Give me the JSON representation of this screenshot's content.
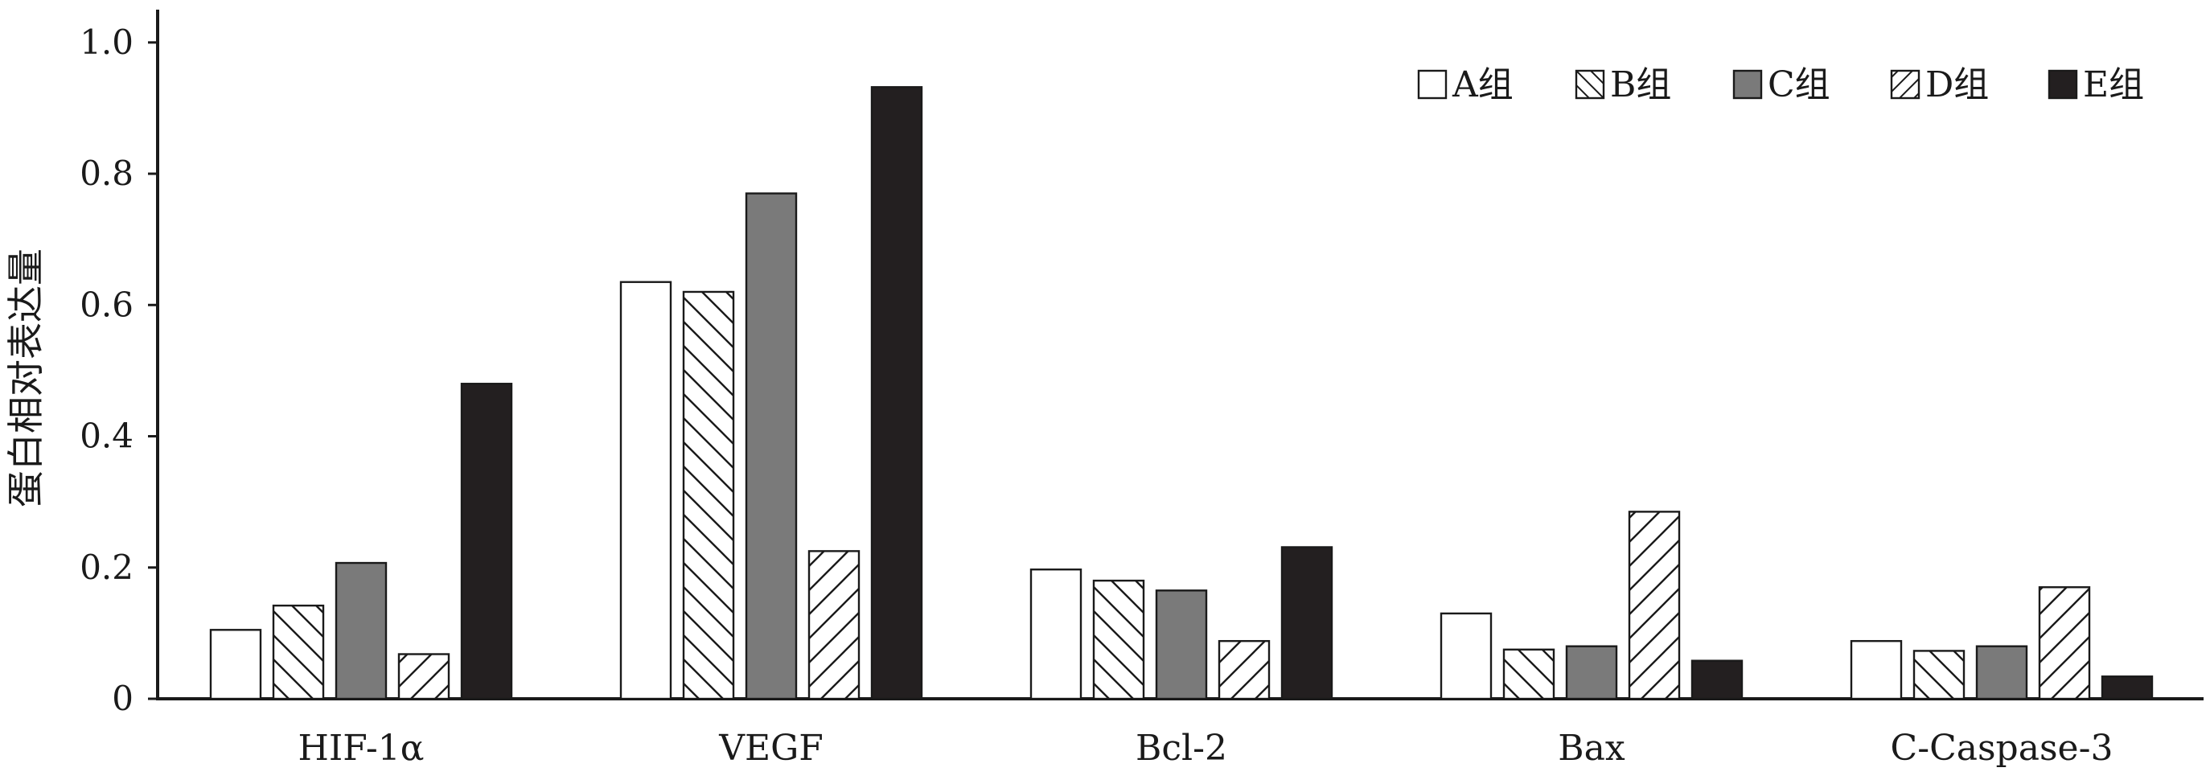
{
  "chart_data": {
    "type": "bar",
    "title": "",
    "xlabel": "",
    "ylabel": "蛋白相对表达量",
    "ylim": [
      0,
      1.05
    ],
    "yticks": [
      "0",
      "0.2",
      "0.4",
      "0.6",
      "0.8",
      "1.0"
    ],
    "ytick_values": [
      0,
      0.2,
      0.4,
      0.6,
      0.8,
      1.0
    ],
    "grid": false,
    "legend_position": "top-right",
    "categories": [
      "HIF-1α",
      "VEGF",
      "Bcl-2",
      "Bax",
      "C-Caspase-3"
    ],
    "series": [
      {
        "name": "A组",
        "pattern": "white",
        "values": [
          0.105,
          0.635,
          0.197,
          0.13,
          0.088
        ]
      },
      {
        "name": "B组",
        "pattern": "backslash",
        "values": [
          0.142,
          0.62,
          0.18,
          0.075,
          0.073
        ]
      },
      {
        "name": "C组",
        "pattern": "gray",
        "values": [
          0.207,
          0.77,
          0.165,
          0.08,
          0.08
        ]
      },
      {
        "name": "D组",
        "pattern": "slash",
        "values": [
          0.068,
          0.225,
          0.088,
          0.285,
          0.17
        ]
      },
      {
        "name": "E组",
        "pattern": "black",
        "values": [
          0.48,
          0.932,
          0.231,
          0.058,
          0.034
        ]
      }
    ],
    "colors": {
      "axis": "#1a1a1a",
      "bar_stroke": "#1a1a1a",
      "white": "#ffffff",
      "gray": "#7a7a7a",
      "black": "#231f20"
    }
  }
}
